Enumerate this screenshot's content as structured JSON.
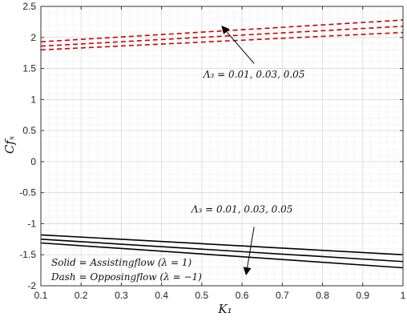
{
  "chart_data": {
    "type": "line",
    "title": "",
    "xlabel": "K₁",
    "ylabel": "Cfₓ",
    "xlim": [
      0.1,
      1.0
    ],
    "ylim": [
      -2.0,
      2.5
    ],
    "x_ticks": [
      0.1,
      0.2,
      0.3,
      0.4,
      0.5,
      0.6,
      0.7,
      0.8,
      0.9,
      1.0
    ],
    "x_tick_labels": [
      "0.1",
      "0.2",
      "0.3",
      "0.4",
      "0.5",
      "0.6",
      "0.7",
      "0.8",
      "0.9",
      "1"
    ],
    "y_ticks": [
      -2.0,
      -1.5,
      -1.0,
      -0.5,
      0.0,
      0.5,
      1.0,
      1.5,
      2.0,
      2.5
    ],
    "y_tick_labels": [
      "-2",
      "-1.5",
      "-1",
      "-0.5",
      "0",
      "0.5",
      "1",
      "1.5",
      "2",
      "2.5"
    ],
    "grid": true,
    "minor_grid": true,
    "colors": {
      "solid": "#000000",
      "dashed": "#cc0000",
      "grid": "#d9d9d9",
      "minor_grid": "#efefef"
    },
    "series": [
      {
        "style": "dashed",
        "color": "#cc0000",
        "x": [
          0.1,
          1.0
        ],
        "y": [
          1.93,
          2.28
        ]
      },
      {
        "style": "dashed",
        "color": "#cc0000",
        "x": [
          0.1,
          1.0
        ],
        "y": [
          1.86,
          2.18
        ]
      },
      {
        "style": "dashed",
        "color": "#cc0000",
        "x": [
          0.1,
          1.0
        ],
        "y": [
          1.8,
          2.08
        ]
      },
      {
        "style": "solid",
        "color": "#000000",
        "x": [
          0.1,
          1.0
        ],
        "y": [
          -1.18,
          -1.5
        ]
      },
      {
        "style": "solid",
        "color": "#000000",
        "x": [
          0.1,
          1.0
        ],
        "y": [
          -1.25,
          -1.61
        ]
      },
      {
        "style": "solid",
        "color": "#000000",
        "x": [
          0.1,
          1.0
        ],
        "y": [
          -1.31,
          -1.71
        ]
      }
    ],
    "annotations": [
      {
        "text": "Λ₃ = 0.01, 0.03, 0.05",
        "at": [
          0.63,
          1.35
        ],
        "arrow_from": [
          0.63,
          1.58
        ],
        "arrow_to": [
          0.55,
          2.18
        ]
      },
      {
        "text": "Λ₃ = 0.01, 0.03, 0.05",
        "at": [
          0.6,
          -0.82
        ],
        "arrow_from": [
          0.63,
          -1.05
        ],
        "arrow_to": [
          0.61,
          -1.82
        ]
      }
    ],
    "legend_text": [
      "Solid = Assistingflow (λ = 1)",
      "Dash = Opposingflow (λ = −1)"
    ]
  }
}
